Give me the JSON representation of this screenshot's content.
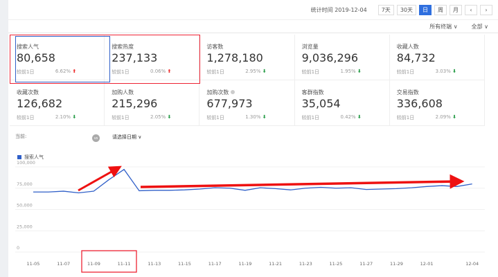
{
  "topbar": {
    "stat_time": "统计时间 2019-12-04",
    "buttons": [
      "7天",
      "30天",
      "日",
      "周",
      "月",
      "‹",
      "›"
    ],
    "active": "日"
  },
  "filters": [
    "所有终端 ∨",
    "全部 ∨"
  ],
  "cards": [
    {
      "label": "搜索人气",
      "value": "80,658",
      "compare": "较前1日",
      "pct": "6.62%",
      "dir": "up"
    },
    {
      "label": "搜索热度",
      "value": "237,133",
      "compare": "较前1日",
      "pct": "0.06%",
      "dir": "up"
    },
    {
      "label": "访客数",
      "value": "1,278,180",
      "compare": "较前1日",
      "pct": "2.95%",
      "dir": "down"
    },
    {
      "label": "浏览量",
      "value": "9,036,296",
      "compare": "较前1日",
      "pct": "1.95%",
      "dir": "down"
    },
    {
      "label": "收藏人数",
      "value": "84,732",
      "compare": "较前1日",
      "pct": "3.03%",
      "dir": "down"
    },
    {
      "label": "收藏次数",
      "value": "126,682",
      "compare": "较前1日",
      "pct": "2.10%",
      "dir": "down"
    },
    {
      "label": "加购人数",
      "value": "215,296",
      "compare": "较前1日",
      "pct": "2.05%",
      "dir": "down"
    },
    {
      "label": "加购次数",
      "value": "677,973",
      "compare": "较前1日",
      "pct": "1.30%",
      "dir": "down",
      "info": true
    },
    {
      "label": "客群指数",
      "value": "35,054",
      "compare": "较前1日",
      "pct": "0.42%",
      "dir": "down"
    },
    {
      "label": "交易指数",
      "value": "336,608",
      "compare": "较前1日",
      "pct": "2.09%",
      "dir": "down"
    }
  ],
  "compare": {
    "current": "当前:",
    "vs": "vs",
    "date_select": "请选择日期 ∨"
  },
  "chart_data": {
    "type": "line",
    "series": [
      {
        "name": "搜索人气",
        "color": "#2f5fc8",
        "values": [
          70500,
          70500,
          71500,
          69500,
          71500,
          85000,
          97000,
          72000,
          72500,
          72500,
          73000,
          74000,
          75500,
          75000,
          72500,
          75500,
          74500,
          73000,
          75000,
          76000,
          75000,
          75500,
          73500,
          74000,
          74500,
          75500,
          77000,
          78000,
          77000,
          80000
        ]
      }
    ],
    "x": [
      "11-05",
      "11-06",
      "11-07",
      "11-08",
      "11-09",
      "11-10",
      "11-11",
      "11-12",
      "11-13",
      "11-14",
      "11-15",
      "11-16",
      "11-17",
      "11-18",
      "11-19",
      "11-20",
      "11-21",
      "11-22",
      "11-23",
      "11-24",
      "11-25",
      "11-26",
      "11-27",
      "11-28",
      "11-29",
      "11-30",
      "12-01",
      "12-02",
      "12-03",
      "12-04"
    ],
    "x_tick_labels": [
      "11-05",
      "11-07",
      "11-09",
      "11-11",
      "11-13",
      "11-15",
      "11-17",
      "11-19",
      "11-21",
      "11-23",
      "11-25",
      "11-27",
      "11-29",
      "12-01",
      "12-04"
    ],
    "y_ticks": [
      0,
      25000,
      50000,
      75000,
      100000
    ],
    "y_tick_labels": [
      "0",
      "25,000",
      "50,000",
      "75,000",
      "100,000"
    ],
    "ylim": [
      0,
      100000
    ],
    "grid": true,
    "legend": "top-left"
  }
}
